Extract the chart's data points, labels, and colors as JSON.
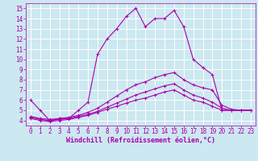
{
  "background_color": "#cce8f0",
  "grid_color": "#ffffff",
  "line_color": "#aa00aa",
  "xlabel": "Windchill (Refroidissement éolien,°C)",
  "xlabel_fontsize": 6,
  "tick_fontsize": 5.5,
  "xlim": [
    -0.5,
    23.5
  ],
  "ylim": [
    3.5,
    15.5
  ],
  "yticks": [
    4,
    5,
    6,
    7,
    8,
    9,
    10,
    11,
    12,
    13,
    14,
    15
  ],
  "xticks": [
    0,
    1,
    2,
    3,
    4,
    5,
    6,
    7,
    8,
    9,
    10,
    11,
    12,
    13,
    14,
    15,
    16,
    17,
    18,
    19,
    20,
    21,
    22,
    23
  ],
  "curves": [
    {
      "x": [
        0,
        1,
        2,
        3,
        4,
        5,
        6,
        7,
        8,
        9,
        10,
        11,
        12,
        13,
        14,
        15,
        16,
        17,
        18,
        19,
        20,
        21,
        22,
        23
      ],
      "y": [
        6,
        5,
        4,
        4.2,
        4.2,
        5,
        5.8,
        10.5,
        12,
        13,
        14.2,
        15,
        13.2,
        14,
        14,
        14.8,
        13.2,
        10,
        9.2,
        8.5,
        5,
        5,
        5,
        5
      ]
    },
    {
      "x": [
        0,
        1,
        2,
        3,
        4,
        5,
        6,
        7,
        8,
        9,
        10,
        11,
        12,
        13,
        14,
        15,
        16,
        17,
        18,
        19,
        20,
        21,
        22,
        23
      ],
      "y": [
        4.4,
        4.2,
        4.1,
        4.2,
        4.3,
        4.5,
        4.8,
        5.2,
        5.8,
        6.4,
        7.0,
        7.5,
        7.8,
        8.2,
        8.5,
        8.7,
        8.0,
        7.5,
        7.2,
        7.0,
        5.5,
        5.1,
        5.0,
        5.0
      ]
    },
    {
      "x": [
        0,
        1,
        2,
        3,
        4,
        5,
        6,
        7,
        8,
        9,
        10,
        11,
        12,
        13,
        14,
        15,
        16,
        17,
        18,
        19,
        20,
        21,
        22,
        23
      ],
      "y": [
        4.3,
        4.1,
        4.0,
        4.1,
        4.2,
        4.4,
        4.6,
        4.9,
        5.3,
        5.7,
        6.1,
        6.5,
        6.8,
        7.1,
        7.4,
        7.6,
        7.0,
        6.5,
        6.2,
        5.8,
        5.2,
        5.0,
        5.0,
        5.0
      ]
    },
    {
      "x": [
        0,
        1,
        2,
        3,
        4,
        5,
        6,
        7,
        8,
        9,
        10,
        11,
        12,
        13,
        14,
        15,
        16,
        17,
        18,
        19,
        20,
        21,
        22,
        23
      ],
      "y": [
        4.2,
        4.0,
        3.9,
        4.0,
        4.1,
        4.3,
        4.5,
        4.8,
        5.1,
        5.4,
        5.7,
        6.0,
        6.2,
        6.5,
        6.8,
        7.0,
        6.5,
        6.0,
        5.8,
        5.4,
        5.0,
        5.0,
        5.0,
        5.0
      ]
    }
  ]
}
